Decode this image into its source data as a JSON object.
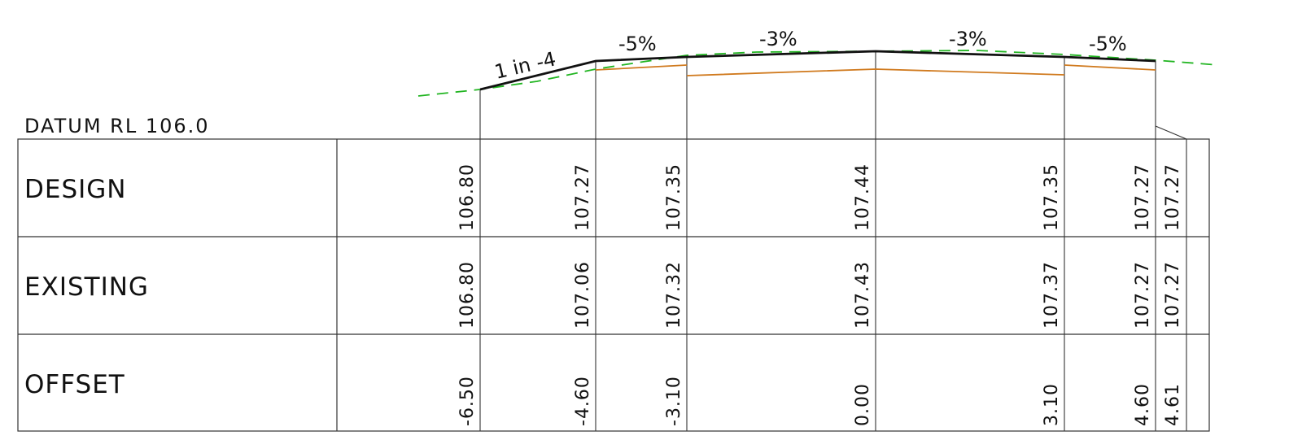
{
  "datum_label": "DATUM RL 106.0",
  "rows": [
    {
      "label": "DESIGN",
      "values": [
        "106.80",
        "107.27",
        "107.35",
        "107.44",
        "107.35",
        "107.27",
        "107.27"
      ]
    },
    {
      "label": "EXISTING",
      "values": [
        "106.80",
        "107.06",
        "107.32",
        "107.43",
        "107.37",
        "107.27",
        "107.27"
      ]
    },
    {
      "label": "OFFSET",
      "values": [
        "-6.50",
        "-4.60",
        "-3.10",
        "0.00",
        "3.10",
        "4.60",
        "4.61"
      ]
    }
  ],
  "grade_labels": [
    "1 in -4",
    "-5%",
    "-3%",
    "-3%",
    "-5%"
  ],
  "colors": {
    "design_line": "#111111",
    "existing_line": "#22b522",
    "subgrade_line": "#d07a1e",
    "grid": "#333333"
  }
}
